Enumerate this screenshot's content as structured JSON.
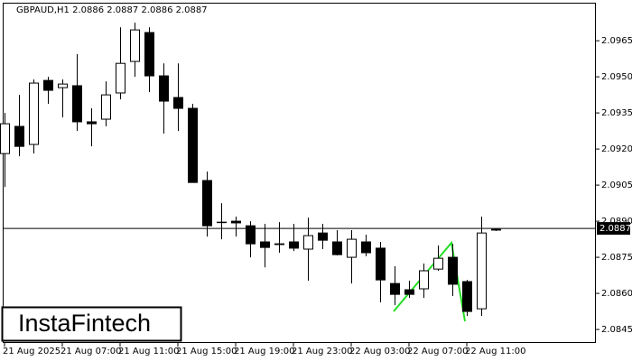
{
  "chart_data": {
    "type": "candlestick",
    "title": "GBPAUD,H1  2.0886 2.0887 2.0886 2.0887",
    "logo": "InstaFintech",
    "categories": [
      "21 Aug 2025",
      null,
      null,
      null,
      "21 Aug 07:00",
      null,
      null,
      null,
      "21 Aug 11:00",
      null,
      null,
      null,
      "21 Aug 15:00",
      null,
      null,
      null,
      "21 Aug 19:00",
      null,
      null,
      null,
      "21 Aug 23:00",
      null,
      null,
      null,
      "22 Aug 03:00",
      null,
      null,
      null,
      "22 Aug 07:00",
      null,
      null,
      null,
      "22 Aug 11:00",
      null,
      null
    ],
    "open": [
      2.09181,
      2.09294,
      2.09219,
      2.09485,
      2.09455,
      2.09463,
      2.09313,
      2.09324,
      2.09433,
      2.09564,
      2.09684,
      2.09504,
      2.09414,
      2.09369,
      2.09069,
      2.08896,
      2.089,
      2.08881,
      2.08814,
      2.08806,
      2.08814,
      2.08784,
      2.08851,
      2.08814,
      2.0875,
      2.08814,
      2.08788,
      2.08641,
      2.08615,
      2.08619,
      2.08701,
      2.0875,
      2.08649,
      2.08536,
      2.08863
    ],
    "high": [
      2.0935,
      2.09425,
      2.09489,
      2.095,
      2.09489,
      2.09594,
      2.09369,
      2.09481,
      2.09706,
      2.09725,
      2.09706,
      2.09556,
      2.09556,
      2.09388,
      2.09106,
      2.08975,
      2.08919,
      2.089,
      2.08889,
      2.08896,
      2.08889,
      2.08915,
      2.08889,
      2.08863,
      2.08863,
      2.08844,
      2.08814,
      2.08713,
      2.08653,
      2.08724,
      2.08799,
      2.08806,
      2.08656,
      2.08919,
      2.0887
    ],
    "low": [
      2.09043,
      2.0917,
      2.09181,
      2.09388,
      2.09331,
      2.09275,
      2.09211,
      2.09294,
      2.09406,
      2.095,
      2.09436,
      2.09264,
      2.09275,
      2.09061,
      2.08836,
      2.08825,
      2.08836,
      2.0875,
      2.08708,
      2.08769,
      2.08776,
      2.08653,
      2.08784,
      2.08758,
      2.08641,
      2.08754,
      2.08563,
      2.08551,
      2.08581,
      2.08581,
      2.08694,
      2.08589,
      2.08506,
      2.08506,
      2.08859
    ],
    "close": [
      2.09305,
      2.09211,
      2.09474,
      2.09444,
      2.0947,
      2.09313,
      2.09305,
      2.09425,
      2.09556,
      2.09695,
      2.09504,
      2.09399,
      2.09369,
      2.09061,
      2.08881,
      2.08896,
      2.08893,
      2.08806,
      2.08791,
      2.08803,
      2.08788,
      2.0884,
      2.08821,
      2.08761,
      2.08825,
      2.08769,
      2.08656,
      2.08596,
      2.08596,
      2.08694,
      2.08746,
      2.08638,
      2.08525,
      2.08851,
      2.08866
    ],
    "up_color": "#ffffff",
    "down_color": "#000000",
    "current_price": 2.0887,
    "ylim": [
      2.08394,
      2.09808
    ],
    "yticks": [
      {
        "value": 2.0965,
        "label": "2.0965"
      },
      {
        "value": 2.095,
        "label": "2.0950"
      },
      {
        "value": 2.0935,
        "label": "2.0935"
      },
      {
        "value": 2.092,
        "label": "2.0920"
      },
      {
        "value": 2.0905,
        "label": "2.0905"
      },
      {
        "value": 2.089,
        "label": "2.0890"
      },
      {
        "value": 2.0875,
        "label": "2.0875"
      },
      {
        "value": 2.086,
        "label": "2.0860"
      },
      {
        "value": 2.0845,
        "label": "2.0845"
      }
    ]
  }
}
